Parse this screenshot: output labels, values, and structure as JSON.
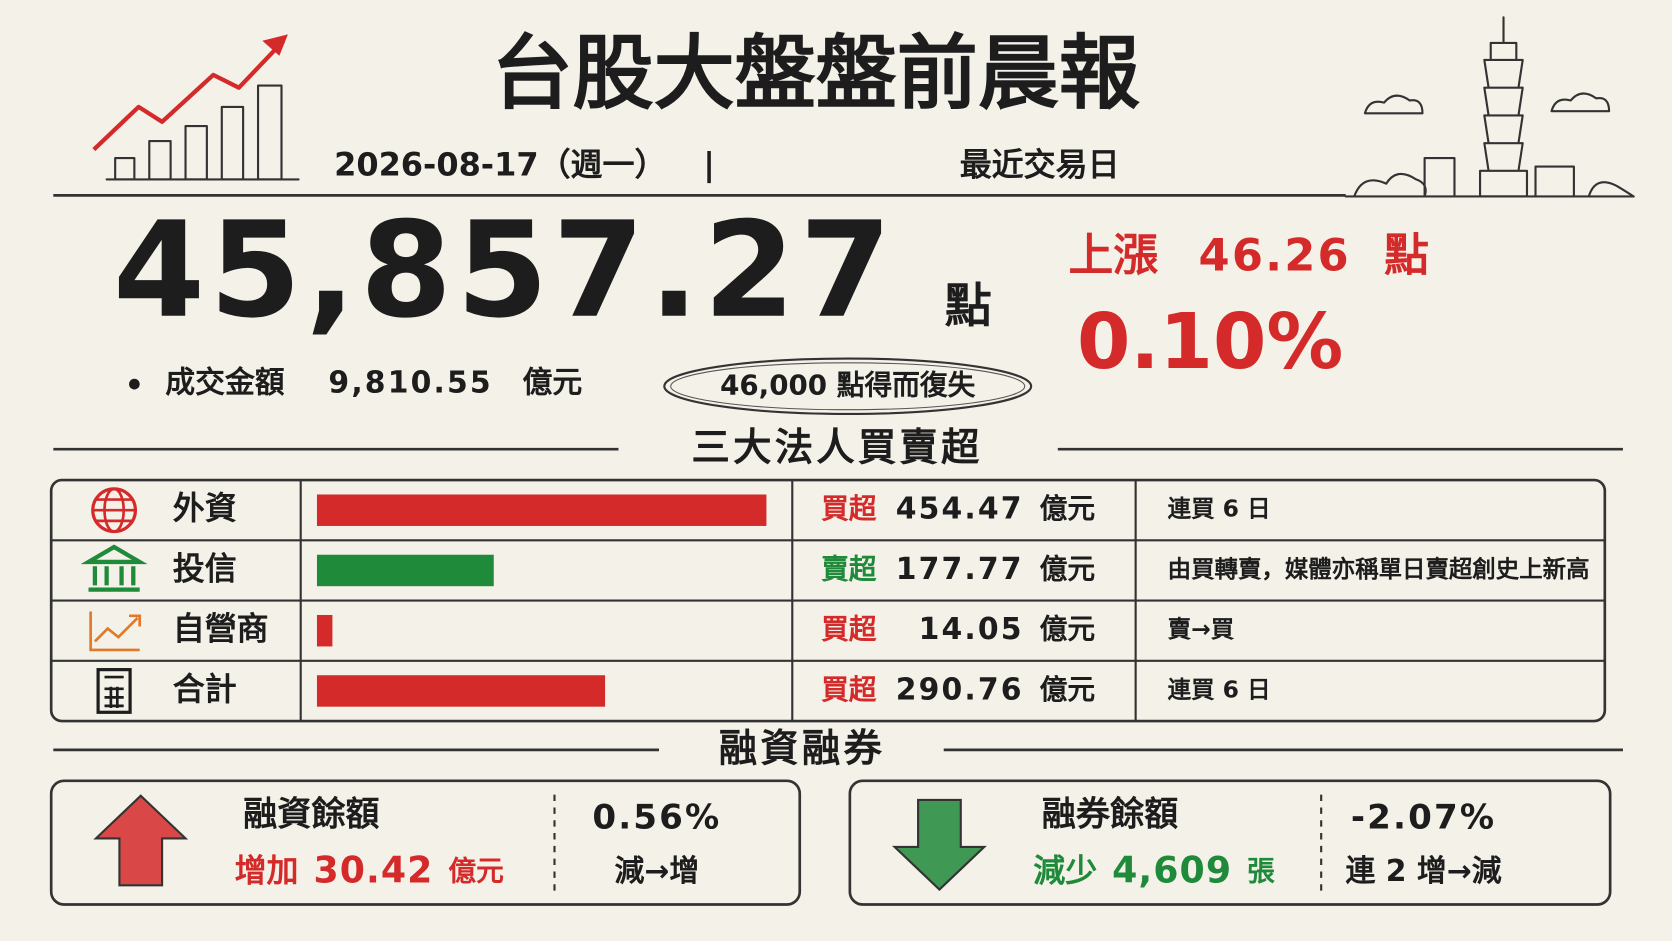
{
  "header": {
    "title": "台股大盤盤前晨報",
    "date": "2026-08-17（週一）",
    "separator": "|",
    "note": "最近交易日"
  },
  "index": {
    "value": "45,857.27",
    "unit": "點",
    "change_label": "上漲",
    "change": "46.26",
    "change_unit": "點",
    "percent": "0.10%",
    "turnover_label": "成交金額",
    "turnover": "9,810.55",
    "turnover_unit": "億元",
    "badge": "46,000 點得而復失"
  },
  "institutional": {
    "title": "三大法人買賣超",
    "rows": [
      {
        "name": "外資",
        "action": "買超",
        "amount": 454.47,
        "unit": "億元",
        "note": "連買 6 日",
        "color": "#d42a2a"
      },
      {
        "name": "投信",
        "action": "賣超",
        "amount": 177.77,
        "unit": "億元",
        "note": "由買轉賣，媒體亦稱單日賣超創史上新高",
        "color": "#1f8a3a"
      },
      {
        "name": "自營商",
        "action": "買超",
        "amount": 14.05,
        "unit": "億元",
        "note": "賣→買",
        "color": "#d42a2a"
      },
      {
        "name": "合計",
        "action": "買超",
        "amount": 290.76,
        "unit": "億元",
        "note": "連買 6 日",
        "color": "#d42a2a"
      }
    ]
  },
  "margin": {
    "title": "融資融券",
    "financing": {
      "label": "融資餘額",
      "change_label": "增加",
      "amount": "30.42",
      "unit": "億元",
      "percent": "0.56%",
      "trend": "減→增",
      "color": "#d42a2a"
    },
    "short": {
      "label": "融券餘額",
      "change_label": "減少",
      "amount": "4,609",
      "unit": "張",
      "percent": "-2.07%",
      "trend": "連 2 增→減",
      "color": "#1f8a3a"
    }
  }
}
